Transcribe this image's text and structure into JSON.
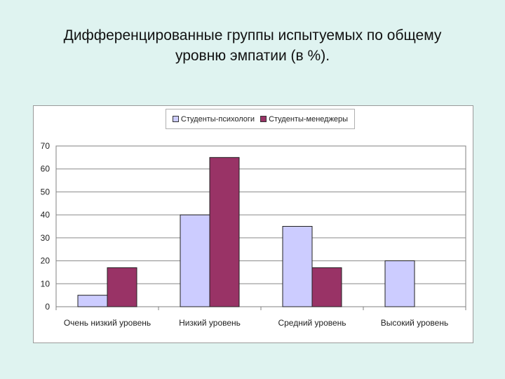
{
  "slide": {
    "title_line1": "Дифференцированные группы испытуемых по общему",
    "title_line2": "уровню эмпатии (в %)."
  },
  "chart_data": {
    "type": "bar",
    "categories": [
      "Очень низкий уровень",
      "Низкий уровень",
      "Средний уровень",
      "Высокий уровень"
    ],
    "series": [
      {
        "name": "Студенты-психологи",
        "color": "#ccccff",
        "values": [
          5,
          40,
          35,
          20
        ]
      },
      {
        "name": "Студенты-менеджеры",
        "color": "#993366",
        "values": [
          17,
          65,
          17,
          0
        ]
      }
    ],
    "yticks": [
      "0",
      "10",
      "20",
      "30",
      "40",
      "50",
      "60",
      "70"
    ],
    "ylim": [
      0,
      70
    ],
    "grid": true,
    "legend_position": "top"
  }
}
